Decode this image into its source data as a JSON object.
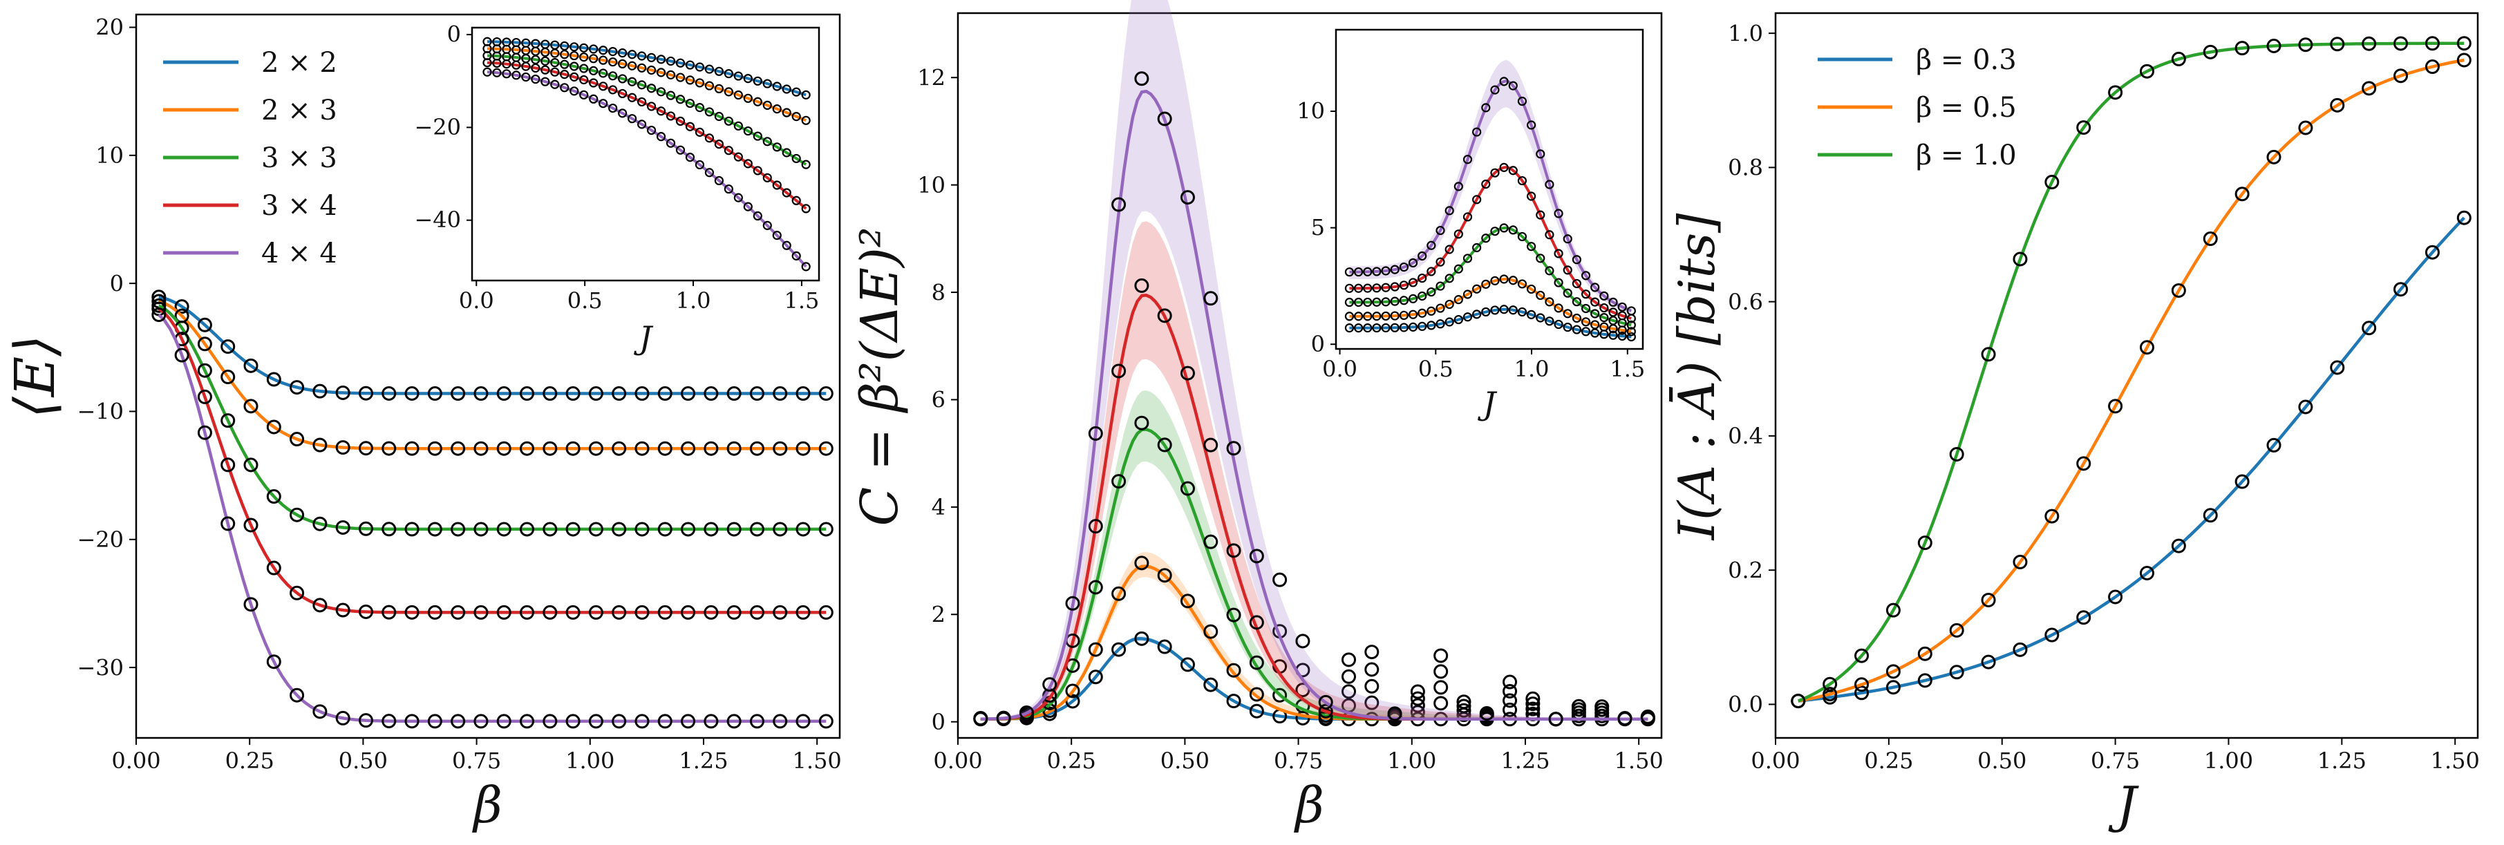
{
  "chart_data": [
    {
      "type": "line",
      "title": "",
      "xlabel": "β",
      "ylabel": "⟨E⟩",
      "xlim": [
        0.0,
        1.55
      ],
      "ylim": [
        -35.5,
        21
      ],
      "xticks": [
        0.0,
        0.25,
        0.5,
        0.75,
        1.0,
        1.25,
        1.5
      ],
      "xtick_labels": [
        "0.00",
        "0.25",
        "0.50",
        "0.75",
        "1.00",
        "1.25",
        "1.50"
      ],
      "yticks": [
        -30,
        -20,
        -10,
        0,
        10,
        20
      ],
      "ytick_labels": [
        "−30",
        "−20",
        "−10",
        "0",
        "10",
        "20"
      ],
      "legend": "top-left",
      "series": [
        {
          "name": "2 × 2",
          "color": "#1f77b4",
          "start": -1.0,
          "end": -8.6,
          "scale": 0.18
        },
        {
          "name": "2 × 3",
          "color": "#ff7f0e",
          "start": -1.3,
          "end": -12.9,
          "scale": 0.18
        },
        {
          "name": "3 × 3",
          "color": "#2ca02c",
          "start": -1.6,
          "end": -19.2,
          "scale": 0.18
        },
        {
          "name": "3 × 4",
          "color": "#d62728",
          "start": -1.8,
          "end": -25.7,
          "scale": 0.18
        },
        {
          "name": "4 × 4",
          "color": "#9467bd",
          "start": -2.2,
          "end": -34.2,
          "scale": 0.18
        }
      ],
      "inset": {
        "xlabel": "J",
        "xlim": [
          -0.02,
          1.58
        ],
        "ylim": [
          -53,
          1.5
        ],
        "xticks": [
          0.0,
          0.5,
          1.0,
          1.5
        ],
        "xtick_labels": [
          "0.0",
          "0.5",
          "1.0",
          "1.5"
        ],
        "yticks": [
          -40,
          -20,
          0
        ],
        "ytick_labels": [
          "−40",
          "−20",
          "0"
        ],
        "series_ends": [
          {
            "start": -1.5,
            "end": -13
          },
          {
            "start": -3.0,
            "end": -18.5
          },
          {
            "start": -4.5,
            "end": -28
          },
          {
            "start": -6.0,
            "end": -37.5
          },
          {
            "start": -8.0,
            "end": -50
          }
        ]
      }
    },
    {
      "type": "line",
      "title": "",
      "xlabel": "β",
      "ylabel": "C = β²(ΔE)²",
      "xlim": [
        0.0,
        1.55
      ],
      "ylim": [
        -0.3,
        13.2
      ],
      "xticks": [
        0.0,
        0.25,
        0.5,
        0.75,
        1.0,
        1.25,
        1.5
      ],
      "xtick_labels": [
        "0.00",
        "0.25",
        "0.50",
        "0.75",
        "1.00",
        "1.25",
        "1.50"
      ],
      "yticks": [
        0,
        2,
        4,
        6,
        8,
        10,
        12
      ],
      "ytick_labels": [
        "0",
        "2",
        "4",
        "6",
        "8",
        "10",
        "12"
      ],
      "series": [
        {
          "name": "2 × 2",
          "color": "#1f77b4",
          "peak": 1.5,
          "peak_x": 0.4
        },
        {
          "name": "2 × 3",
          "color": "#ff7f0e",
          "peak": 2.85,
          "peak_x": 0.41
        },
        {
          "name": "3 × 3",
          "color": "#2ca02c",
          "peak": 5.4,
          "peak_x": 0.41
        },
        {
          "name": "3 × 4",
          "color": "#d62728",
          "peak": 7.9,
          "peak_x": 0.41
        },
        {
          "name": "4 × 4",
          "color": "#9467bd",
          "peak": 11.7,
          "peak_x": 0.41
        }
      ],
      "inset": {
        "xlabel": "J",
        "xlim": [
          -0.02,
          1.58
        ],
        "ylim": [
          -0.2,
          13.5
        ],
        "xticks": [
          0.0,
          0.5,
          1.0,
          1.5
        ],
        "xtick_labels": [
          "0.0",
          "0.5",
          "1.0",
          "1.5"
        ],
        "yticks": [
          0,
          5,
          10
        ],
        "ytick_labels": [
          "0",
          "5",
          "10"
        ],
        "curves": [
          {
            "base": 0.7,
            "peak": 1.5
          },
          {
            "base": 1.2,
            "peak": 2.8
          },
          {
            "base": 1.8,
            "peak": 5.0
          },
          {
            "base": 2.4,
            "peak": 7.6
          },
          {
            "base": 3.1,
            "peak": 11.3
          }
        ]
      }
    },
    {
      "type": "line",
      "title": "",
      "xlabel": "J",
      "ylabel": "I(A : Ā) [bits]",
      "xlim": [
        0.0,
        1.55
      ],
      "ylim": [
        -0.05,
        1.03
      ],
      "xticks": [
        0.0,
        0.25,
        0.5,
        0.75,
        1.0,
        1.25,
        1.5
      ],
      "xtick_labels": [
        "0.00",
        "0.25",
        "0.50",
        "0.75",
        "1.00",
        "1.25",
        "1.50"
      ],
      "yticks": [
        0.0,
        0.2,
        0.4,
        0.6,
        0.8,
        1.0
      ],
      "ytick_labels": [
        "0.0",
        "0.2",
        "0.4",
        "0.6",
        "0.8",
        "1.0"
      ],
      "legend": "top-left",
      "series": [
        {
          "name": "β = 0.3",
          "color": "#1f77b4",
          "x0": 1.25,
          "k": 3.2
        },
        {
          "name": "β = 0.5",
          "color": "#ff7f0e",
          "x0": 0.78,
          "k": 5.0
        },
        {
          "name": "β = 1.0",
          "color": "#2ca02c",
          "x0": 0.45,
          "k": 8.5
        }
      ]
    }
  ]
}
